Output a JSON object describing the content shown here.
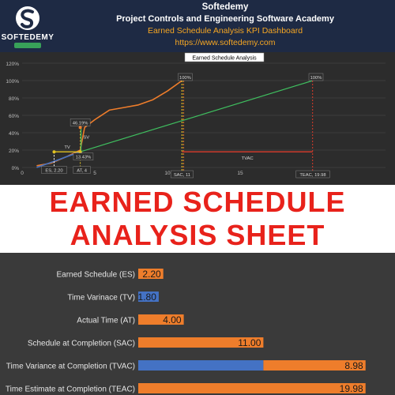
{
  "header": {
    "logo_text": "SOFTEDEMY",
    "brand": "Softedemy",
    "academy": "Project Controls and Engineering Software Academy",
    "dashboard": "Earned Schedule Analysis KPI Dashboard",
    "url": "https://www.softedemy.com"
  },
  "banner": {
    "line1": "EARNED SCHEDULE",
    "line2": "ANALYSIS SHEET"
  },
  "colors": {
    "orange": "#ee7d2b",
    "blue": "#4472c4",
    "green": "#3fbf5f",
    "red": "#c0392b",
    "yellow": "#e2c221",
    "header_bg": "#1e2a44",
    "banner_text": "#e8221b"
  },
  "chart_data": [
    {
      "type": "line",
      "title": "Earned Schedule Analysis",
      "xlim": [
        0,
        25
      ],
      "ylim": [
        0,
        1.2
      ],
      "x_ticks": [
        0,
        5,
        10,
        15,
        20
      ],
      "y_ticks": [
        "0%",
        "20%",
        "40%",
        "60%",
        "80%",
        "100%",
        "120%"
      ],
      "grid": true,
      "series": [
        {
          "kind": "planned",
          "color": "#ee7d2b",
          "points": [
            [
              1,
              0.02
            ],
            [
              2,
              0.05
            ],
            [
              3,
              0.12
            ],
            [
              4,
              0.2
            ],
            [
              4.3,
              0.46
            ],
            [
              5,
              0.55
            ],
            [
              6,
              0.66
            ],
            [
              7,
              0.69
            ],
            [
              8,
              0.72
            ],
            [
              9,
              0.78
            ],
            [
              10,
              0.88
            ],
            [
              11,
              1.0
            ]
          ]
        },
        {
          "kind": "earned",
          "color": "#4472c4",
          "points": [
            [
              1,
              0.0
            ],
            [
              1.5,
              0.03
            ],
            [
              2.2,
              0.07
            ],
            [
              3,
              0.12
            ],
            [
              4,
              0.18
            ],
            [
              4.6,
              0.1
            ]
          ]
        },
        {
          "kind": "forecast",
          "color": "#3fbf5f",
          "points": [
            [
              4,
              0.18
            ],
            [
              20,
              1.0
            ]
          ]
        }
      ],
      "annotations": [
        {
          "text": "100%",
          "x": 11,
          "y": 1.0
        },
        {
          "text": "100%",
          "x": 20,
          "y": 1.0
        },
        {
          "text": "46.19%",
          "x": 4,
          "y": 0.46
        },
        {
          "text": "13.43%",
          "x": 4.1,
          "y": 0.13
        },
        {
          "text": "SV",
          "x": 4.2,
          "y": 0.33
        },
        {
          "text": "TV",
          "x": 3.1,
          "y": 0.2
        },
        {
          "text": "TVAC",
          "x": 15.5,
          "y": 0.09
        },
        {
          "text": "ES, 2.20",
          "x": 2.2,
          "y": -0.05
        },
        {
          "text": "AT, 4",
          "x": 4,
          "y": -0.05
        },
        {
          "text": "SAC, 11",
          "x": 11,
          "y": -0.1
        },
        {
          "text": "TEAC, 19.98",
          "x": 20,
          "y": -0.1
        }
      ],
      "markers": {
        "es": 2.2,
        "at": 4,
        "sac": 11,
        "teac": 19.98,
        "sv": [
          0.18,
          0.46
        ],
        "tv": [
          2.2,
          4
        ],
        "tvac": [
          11,
          19.98
        ]
      }
    },
    {
      "type": "bar",
      "orientation": "horizontal",
      "xlim": [
        0,
        20
      ],
      "categories": [
        "Earned Schedule (ES)",
        "Time Varinace (TV)",
        "Actual Time (AT)",
        "Schedule at Completion (SAC)",
        "Time Variance at Completion (TVAC)",
        "Time Estimate at Completion (TEAC)"
      ],
      "series": [
        {
          "color": "#ee7d2b",
          "values": [
            2.2,
            0,
            4.0,
            11.0,
            8.98,
            19.98
          ],
          "labels": [
            "2.20",
            "",
            "4.00",
            "11.00",
            "8.98",
            "19.98"
          ]
        },
        {
          "color": "#4472c4",
          "values": [
            0,
            1.8,
            0,
            0,
            11.0,
            0
          ],
          "labels": [
            "",
            "1.80",
            "",
            "",
            "",
            ""
          ]
        }
      ],
      "stacked": true
    }
  ]
}
